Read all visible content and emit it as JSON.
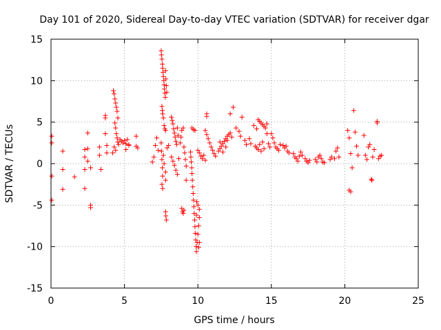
{
  "colors": {
    "series": "#ff0000",
    "axis": "#000000",
    "grid": "#a0a0a0",
    "background": "#ffffff"
  },
  "chart_data": {
    "type": "scatter",
    "title": "Day 101 of 2020, Sidereal Day-to-day VTEC variation (SDTVAR) for receiver dgar",
    "xlabel": "GPS time / hours",
    "ylabel": "SDTVAR / TECUs",
    "xlim": [
      0,
      25
    ],
    "ylim": [
      -15,
      15
    ],
    "xticks": [
      0,
      5,
      10,
      15,
      20,
      25
    ],
    "yticks": [
      -15,
      -10,
      -5,
      0,
      5,
      10,
      15
    ],
    "grid": true,
    "marker": "plus",
    "series": [
      {
        "name": "SDTVAR",
        "points": [
          [
            0.05,
            3.3
          ],
          [
            0.05,
            2.5
          ],
          [
            0.05,
            -1.5
          ],
          [
            0.05,
            -4.4
          ],
          [
            0.8,
            1.5
          ],
          [
            0.8,
            -0.7
          ],
          [
            0.8,
            -3.1
          ],
          [
            1.6,
            -1.6
          ],
          [
            2.3,
            1.7
          ],
          [
            2.3,
            0.8
          ],
          [
            2.3,
            -0.7
          ],
          [
            2.3,
            -3.0
          ],
          [
            2.5,
            3.7
          ],
          [
            2.5,
            1.8
          ],
          [
            2.5,
            0.3
          ],
          [
            2.7,
            -0.5
          ],
          [
            2.7,
            -5.0
          ],
          [
            2.7,
            -5.3
          ],
          [
            3.3,
            2.0
          ],
          [
            3.3,
            1.0
          ],
          [
            3.4,
            -0.7
          ],
          [
            3.7,
            5.8
          ],
          [
            3.7,
            5.5
          ],
          [
            3.7,
            3.6
          ],
          [
            3.8,
            2.2
          ],
          [
            3.8,
            1.3
          ],
          [
            4.25,
            8.8
          ],
          [
            4.3,
            8.4
          ],
          [
            4.35,
            7.8
          ],
          [
            4.4,
            7.3
          ],
          [
            4.45,
            6.8
          ],
          [
            4.5,
            6.3
          ],
          [
            4.55,
            5.5
          ],
          [
            4.35,
            4.9
          ],
          [
            4.4,
            4.3
          ],
          [
            4.45,
            3.6
          ],
          [
            4.5,
            3.1
          ],
          [
            4.55,
            2.6
          ],
          [
            4.6,
            2.3
          ],
          [
            4.7,
            2.9
          ],
          [
            4.8,
            2.7
          ],
          [
            4.9,
            2.5
          ],
          [
            5.0,
            2.8
          ],
          [
            5.1,
            2.4
          ],
          [
            5.2,
            2.9
          ],
          [
            5.3,
            2.3
          ],
          [
            5.1,
            1.7
          ],
          [
            5.3,
            2.2
          ],
          [
            4.3,
            2.0
          ],
          [
            4.2,
            1.3
          ],
          [
            4.4,
            1.6
          ],
          [
            5.8,
            3.3
          ],
          [
            5.8,
            2.1
          ],
          [
            5.9,
            1.9
          ],
          [
            6.9,
            0.2
          ],
          [
            7.0,
            0.8
          ],
          [
            7.1,
            2.2
          ],
          [
            7.2,
            3.1
          ],
          [
            7.3,
            1.6
          ],
          [
            7.5,
            13.6
          ],
          [
            7.52,
            13.1
          ],
          [
            7.55,
            12.6
          ],
          [
            7.58,
            12.0
          ],
          [
            7.6,
            11.5
          ],
          [
            7.62,
            11.0
          ],
          [
            7.65,
            10.5
          ],
          [
            7.68,
            10.0
          ],
          [
            7.7,
            9.5
          ],
          [
            7.72,
            9.0
          ],
          [
            7.75,
            8.5
          ],
          [
            7.78,
            8.0
          ],
          [
            7.8,
            11.2
          ],
          [
            7.82,
            10.2
          ],
          [
            7.85,
            9.4
          ],
          [
            7.88,
            8.6
          ],
          [
            7.55,
            6.9
          ],
          [
            7.58,
            6.4
          ],
          [
            7.6,
            6.0
          ],
          [
            7.65,
            5.5
          ],
          [
            7.7,
            4.6
          ],
          [
            7.75,
            4.2
          ],
          [
            7.8,
            4.0
          ],
          [
            7.5,
            2.5
          ],
          [
            7.52,
            1.5
          ],
          [
            7.55,
            0.5
          ],
          [
            7.58,
            -0.5
          ],
          [
            7.6,
            -1.5
          ],
          [
            7.55,
            -2.5
          ],
          [
            7.6,
            -3.0
          ],
          [
            7.65,
            1.0
          ],
          [
            7.7,
            0.0
          ],
          [
            7.8,
            -1.0
          ],
          [
            7.8,
            -2.0
          ],
          [
            7.8,
            -5.8
          ],
          [
            7.82,
            -6.3
          ],
          [
            7.85,
            -6.8
          ],
          [
            7.9,
            1.9
          ],
          [
            8.0,
            2.2
          ],
          [
            8.2,
            5.6
          ],
          [
            8.25,
            5.2
          ],
          [
            8.3,
            4.8
          ],
          [
            8.35,
            4.2
          ],
          [
            8.4,
            3.7
          ],
          [
            8.45,
            3.2
          ],
          [
            8.5,
            2.7
          ],
          [
            8.55,
            2.3
          ],
          [
            8.6,
            4.3
          ],
          [
            8.65,
            3.4
          ],
          [
            8.2,
            0.8
          ],
          [
            8.3,
            0.3
          ],
          [
            8.4,
            -0.2
          ],
          [
            8.5,
            -0.8
          ],
          [
            8.6,
            -1.3
          ],
          [
            8.7,
            0.6
          ],
          [
            8.8,
            2.5
          ],
          [
            8.85,
            3.2
          ],
          [
            8.9,
            4.0
          ],
          [
            9.0,
            4.3
          ],
          [
            9.05,
            2.0
          ],
          [
            9.1,
            1.3
          ],
          [
            9.15,
            0.5
          ],
          [
            9.2,
            -0.3
          ],
          [
            8.9,
            -5.4
          ],
          [
            8.95,
            -5.8
          ],
          [
            9.0,
            -6.0
          ],
          [
            9.05,
            -5.6
          ],
          [
            9.2,
            -2.0
          ],
          [
            9.5,
            1.4
          ],
          [
            9.52,
            0.8
          ],
          [
            9.55,
            0.2
          ],
          [
            9.58,
            -0.5
          ],
          [
            9.6,
            -1.2
          ],
          [
            9.62,
            -2.0
          ],
          [
            9.65,
            -2.8
          ],
          [
            9.68,
            -3.6
          ],
          [
            9.7,
            -4.4
          ],
          [
            9.72,
            -5.2
          ],
          [
            9.75,
            -6.0
          ],
          [
            9.78,
            -6.8
          ],
          [
            9.8,
            -7.6
          ],
          [
            9.82,
            -8.4
          ],
          [
            9.85,
            -9.2
          ],
          [
            9.88,
            -10.0
          ],
          [
            9.9,
            -10.6
          ],
          [
            9.95,
            -9.5
          ],
          [
            10.0,
            -8.5
          ],
          [
            10.05,
            -7.5
          ],
          [
            10.1,
            -6.5
          ],
          [
            10.1,
            -5.5
          ],
          [
            10.0,
            -5.0
          ],
          [
            9.9,
            -6.2
          ],
          [
            9.92,
            -4.6
          ],
          [
            10.1,
            -9.5
          ],
          [
            10.05,
            -10.1
          ],
          [
            9.6,
            4.3
          ],
          [
            9.7,
            4.1
          ],
          [
            9.8,
            4.0
          ],
          [
            10.0,
            1.6
          ],
          [
            10.1,
            1.3
          ],
          [
            10.2,
            0.9
          ],
          [
            10.3,
            0.6
          ],
          [
            10.4,
            1.0
          ],
          [
            10.5,
            0.4
          ],
          [
            10.6,
            6.0
          ],
          [
            10.6,
            5.7
          ],
          [
            10.5,
            4.0
          ],
          [
            10.6,
            3.5
          ],
          [
            10.7,
            3.0
          ],
          [
            10.8,
            2.5
          ],
          [
            10.9,
            2.0
          ],
          [
            11.0,
            1.6
          ],
          [
            11.1,
            1.2
          ],
          [
            11.2,
            0.9
          ],
          [
            11.4,
            1.5
          ],
          [
            11.5,
            1.8
          ],
          [
            11.6,
            2.1
          ],
          [
            11.7,
            2.4
          ],
          [
            11.8,
            2.7
          ],
          [
            11.9,
            3.0
          ],
          [
            12.0,
            3.3
          ],
          [
            12.1,
            3.5
          ],
          [
            12.2,
            3.7
          ],
          [
            12.3,
            3.2
          ],
          [
            11.5,
            2.6
          ],
          [
            11.7,
            1.4
          ],
          [
            11.9,
            2.0
          ],
          [
            12.0,
            2.8
          ],
          [
            12.2,
            6.0
          ],
          [
            12.4,
            6.8
          ],
          [
            12.6,
            4.3
          ],
          [
            12.8,
            3.9
          ],
          [
            12.9,
            3.3
          ],
          [
            13.0,
            5.6
          ],
          [
            13.2,
            2.8
          ],
          [
            13.3,
            2.3
          ],
          [
            13.5,
            3.0
          ],
          [
            13.6,
            2.4
          ],
          [
            13.8,
            4.6
          ],
          [
            14.0,
            4.2
          ],
          [
            14.1,
            5.3
          ],
          [
            14.2,
            5.1
          ],
          [
            14.3,
            4.9
          ],
          [
            14.4,
            4.7
          ],
          [
            14.5,
            4.5
          ],
          [
            14.6,
            4.3
          ],
          [
            14.7,
            4.8
          ],
          [
            13.9,
            2.1
          ],
          [
            14.0,
            1.9
          ],
          [
            14.1,
            1.7
          ],
          [
            14.2,
            2.3
          ],
          [
            14.3,
            1.5
          ],
          [
            14.4,
            2.6
          ],
          [
            14.5,
            1.8
          ],
          [
            14.7,
            3.6
          ],
          [
            14.8,
            2.4
          ],
          [
            14.9,
            2.0
          ],
          [
            15.0,
            3.6
          ],
          [
            15.1,
            3.1
          ],
          [
            15.2,
            2.5
          ],
          [
            15.3,
            2.0
          ],
          [
            15.4,
            1.8
          ],
          [
            15.5,
            1.6
          ],
          [
            15.6,
            2.3
          ],
          [
            15.8,
            2.2
          ],
          [
            15.9,
            1.9
          ],
          [
            16.0,
            2.1
          ],
          [
            16.1,
            1.5
          ],
          [
            16.2,
            1.3
          ],
          [
            16.5,
            1.2
          ],
          [
            16.6,
            0.8
          ],
          [
            16.7,
            0.6
          ],
          [
            16.8,
            0.3
          ],
          [
            16.9,
            0.9
          ],
          [
            17.0,
            1.4
          ],
          [
            17.1,
            1.0
          ],
          [
            17.3,
            0.6
          ],
          [
            17.4,
            0.3
          ],
          [
            17.5,
            0.1
          ],
          [
            17.6,
            0.4
          ],
          [
            18.0,
            0.5
          ],
          [
            18.1,
            0.2
          ],
          [
            18.2,
            0.8
          ],
          [
            18.3,
            1.0
          ],
          [
            18.4,
            0.6
          ],
          [
            18.5,
            0.2
          ],
          [
            18.6,
            0.1
          ],
          [
            19.0,
            0.5
          ],
          [
            19.1,
            0.8
          ],
          [
            19.3,
            0.6
          ],
          [
            19.4,
            1.5
          ],
          [
            19.5,
            1.9
          ],
          [
            19.6,
            0.8
          ],
          [
            20.2,
            4.0
          ],
          [
            20.3,
            3.1
          ],
          [
            20.4,
            1.2
          ],
          [
            20.5,
            -0.5
          ],
          [
            20.6,
            6.4
          ],
          [
            20.7,
            3.8
          ],
          [
            20.8,
            2.1
          ],
          [
            20.9,
            1.0
          ],
          [
            20.3,
            -3.2
          ],
          [
            20.4,
            -3.4
          ],
          [
            21.3,
            3.4
          ],
          [
            21.4,
            1.0
          ],
          [
            21.5,
            0.5
          ],
          [
            21.6,
            2.0
          ],
          [
            21.7,
            2.3
          ],
          [
            21.8,
            -1.9
          ],
          [
            21.85,
            -2.0
          ],
          [
            21.9,
            0.8
          ],
          [
            22.0,
            1.7
          ],
          [
            22.2,
            5.1
          ],
          [
            22.3,
            0.6
          ],
          [
            22.4,
            0.9
          ],
          [
            22.5,
            1.0
          ],
          [
            22.2,
            4.9
          ]
        ]
      }
    ]
  }
}
